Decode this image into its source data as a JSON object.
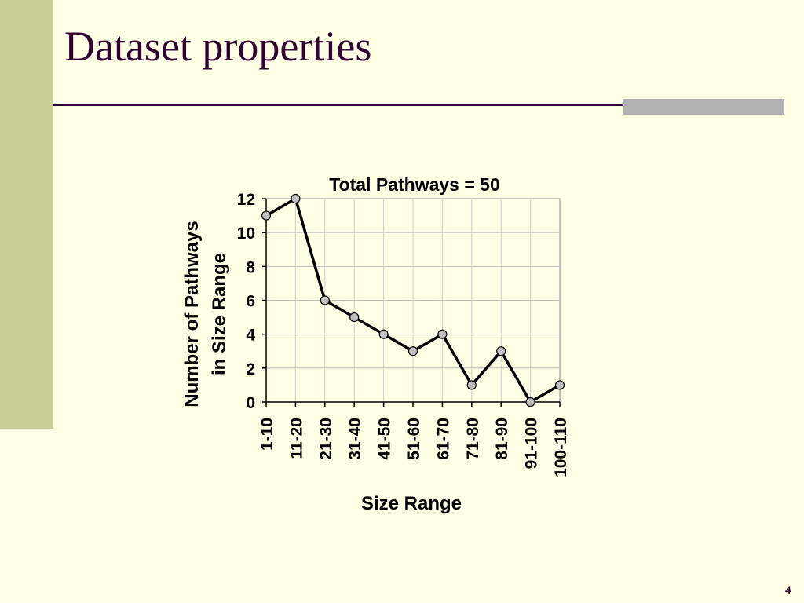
{
  "slide": {
    "title": "Dataset properties",
    "page_number": "4"
  },
  "colors": {
    "background": "#FFFFE5",
    "sidebar": "#CCCC99",
    "title": "#330033",
    "accent": "#B2B2B2",
    "marker_fill": "#C0C0C0"
  },
  "chart_data": {
    "type": "line",
    "title": "Total Pathways = 50",
    "xlabel": "Size Range",
    "ylabel": [
      "Number of Pathways",
      "in Size Range"
    ],
    "categories": [
      "1-10",
      "11-20",
      "21-30",
      "31-40",
      "41-50",
      "51-60",
      "61-70",
      "71-80",
      "81-90",
      "91-100",
      "100-110"
    ],
    "series": [
      {
        "values": [
          11,
          12,
          6,
          5,
          4,
          3,
          4,
          1,
          3,
          0,
          1
        ]
      }
    ],
    "ylim": [
      0,
      12
    ],
    "yticks": [
      0,
      2,
      4,
      6,
      8,
      10,
      12
    ],
    "grid": true,
    "legend": "none"
  }
}
